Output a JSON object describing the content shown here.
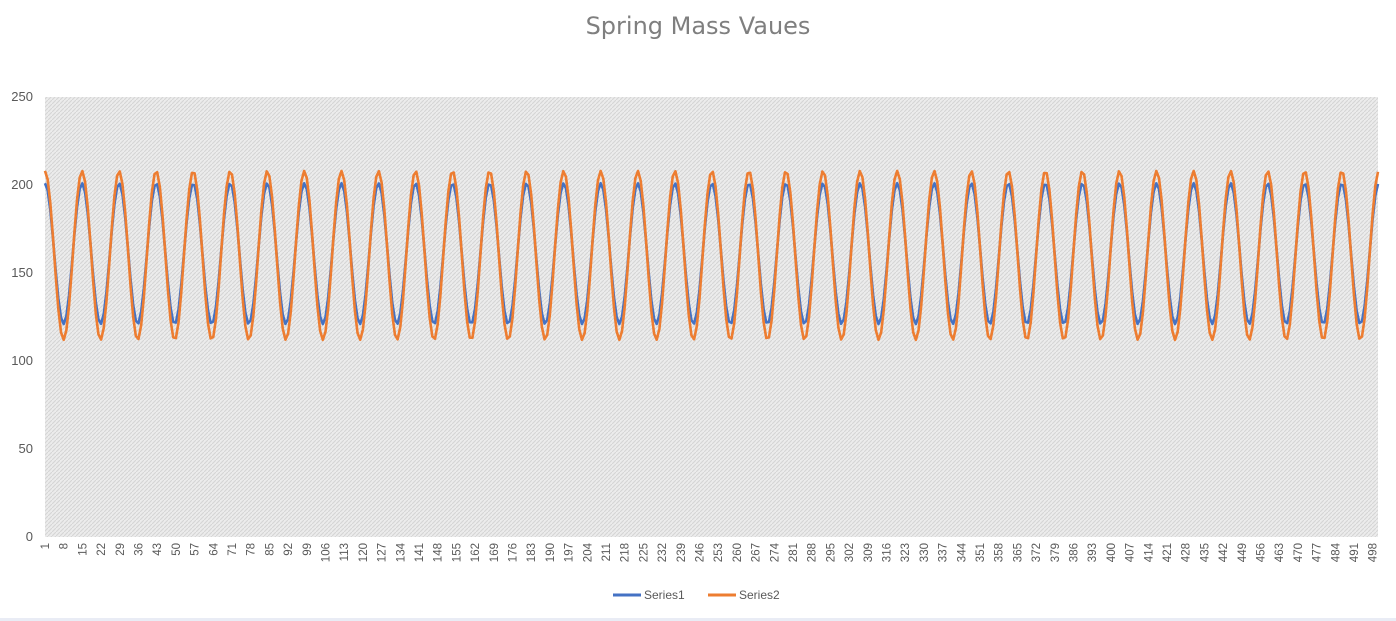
{
  "chart_data": {
    "type": "line",
    "title": "Spring Mass Vaues",
    "xlabel": "",
    "ylabel": "",
    "x_range": [
      1,
      500
    ],
    "ylim": [
      0,
      250
    ],
    "y_ticks": [
      0,
      50,
      100,
      150,
      200,
      250
    ],
    "x_tick_labels": [
      "1",
      "8",
      "15",
      "22",
      "29",
      "36",
      "43",
      "50",
      "57",
      "64",
      "71",
      "78",
      "85",
      "92",
      "99",
      "106",
      "113",
      "120",
      "127",
      "134",
      "141",
      "148",
      "155",
      "162",
      "169",
      "176",
      "183",
      "190",
      "197",
      "204",
      "211",
      "218",
      "225",
      "232",
      "239",
      "246",
      "253",
      "260",
      "267",
      "274",
      "281",
      "288",
      "295",
      "302",
      "309",
      "316",
      "323",
      "330",
      "337",
      "344",
      "351",
      "358",
      "365",
      "372",
      "379",
      "386",
      "393",
      "400",
      "407",
      "414",
      "421",
      "428",
      "435",
      "442",
      "449",
      "456",
      "463",
      "470",
      "477",
      "484",
      "491",
      "498"
    ],
    "grid": "dense background hatch",
    "legend_position": "bottom",
    "series": [
      {
        "name": "Series1",
        "color": "#4472c4",
        "center": 161,
        "amplitude": 40,
        "period_points": 13.87,
        "start_value": 200,
        "end_value": 187
      },
      {
        "name": "Series2",
        "color": "#ed7d31",
        "center": 160,
        "amplitude": 48,
        "period_points": 13.87,
        "start_value": 200,
        "end_value": 204
      }
    ]
  }
}
